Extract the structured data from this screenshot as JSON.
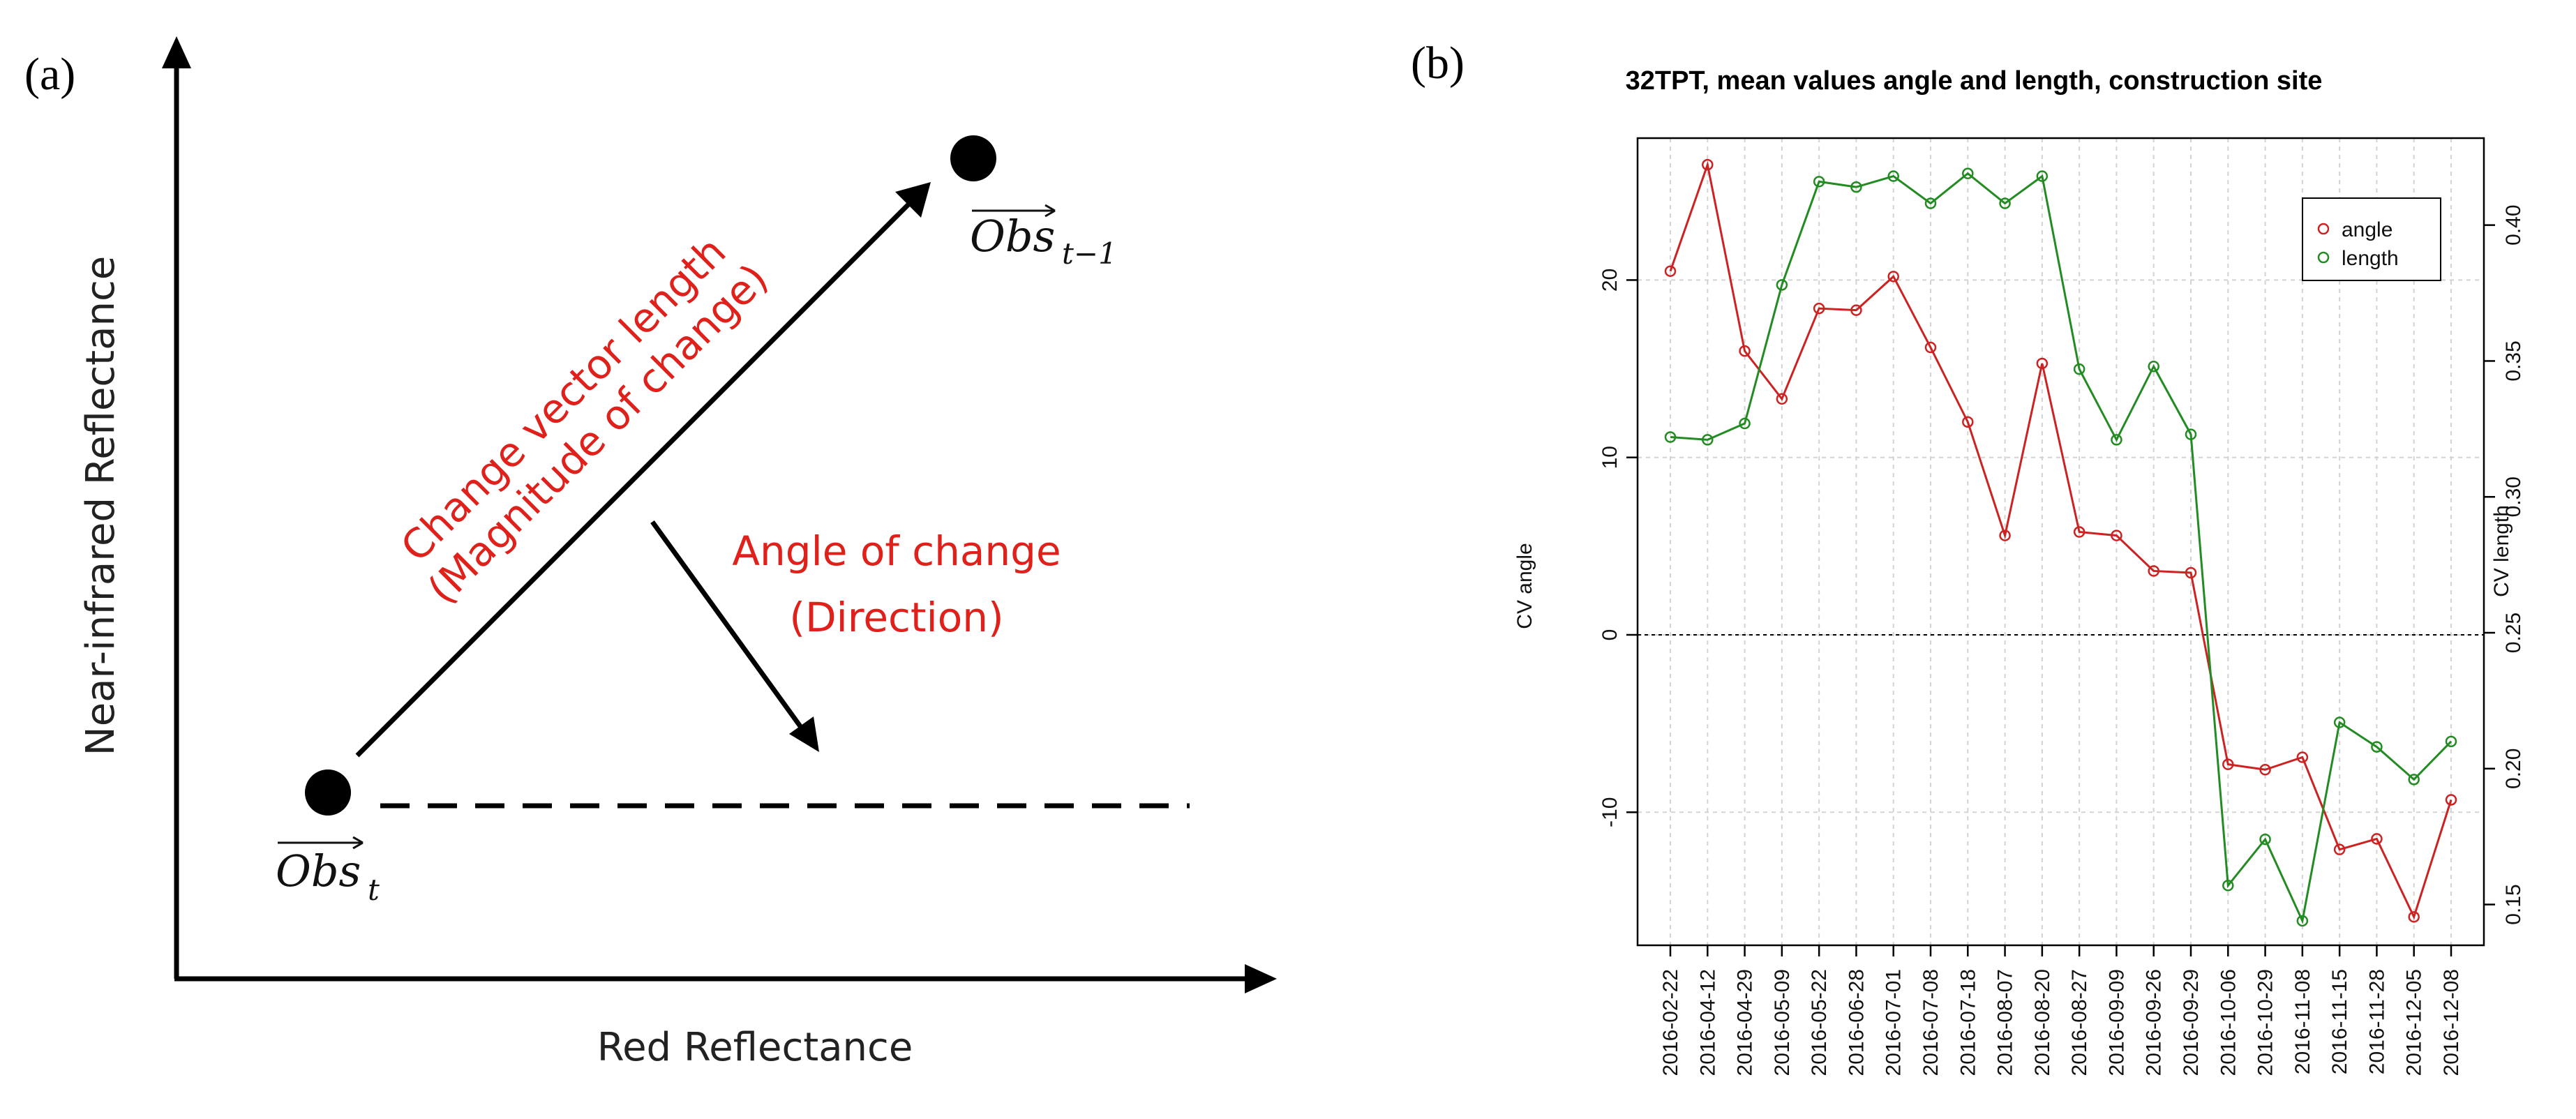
{
  "figure": {
    "label_a": "(a)",
    "label_b": "(b)"
  },
  "diagram": {
    "y_axis_title": "Near-infrared Reflectance",
    "x_axis_title": "Red Reflectance",
    "vector_length_line1": "Change vector length",
    "vector_length_line2": "(Magnitude of change)",
    "angle_line1": "Angle of change",
    "angle_line2": "(Direction)",
    "obs_t_main": "Obs",
    "obs_t_sub": "t",
    "obs_t1_main": "Obs",
    "obs_t1_sub": "t−1",
    "text_color": "#e0201a"
  },
  "chart_data": {
    "type": "line",
    "title": "32TPT, mean values angle and length, construction site",
    "xlabel": "",
    "ylabel": "CV angle",
    "ylabel_right": "CV length",
    "categories": [
      "2016-02-22",
      "2016-04-12",
      "2016-04-29",
      "2016-05-09",
      "2016-05-22",
      "2016-06-28",
      "2016-07-01",
      "2016-07-08",
      "2016-07-18",
      "2016-08-07",
      "2016-08-20",
      "2016-08-27",
      "2016-09-09",
      "2016-09-26",
      "2016-09-29",
      "2016-10-06",
      "2016-10-29",
      "2016-11-08",
      "2016-11-15",
      "2016-11-28",
      "2016-12-05",
      "2016-12-08"
    ],
    "series": [
      {
        "name": "angle",
        "axis": "left",
        "color": "#cc2222",
        "values": [
          20.5,
          26.5,
          16,
          13.3,
          18.4,
          18.3,
          20.2,
          16.2,
          12,
          5.6,
          15.3,
          5.8,
          5.6,
          3.6,
          3.5,
          -7.3,
          -7.6,
          -6.9,
          -12.1,
          -11.5,
          -15.9,
          -9.3
        ]
      },
      {
        "name": "length",
        "axis": "right",
        "color": "#228b22",
        "values": [
          0.322,
          0.321,
          0.327,
          0.378,
          0.416,
          0.414,
          0.418,
          0.408,
          0.419,
          0.408,
          0.418,
          0.347,
          0.321,
          0.348,
          0.323,
          0.157,
          0.174,
          0.144,
          0.217,
          0.208,
          0.196,
          0.21
        ]
      }
    ],
    "left_ticks": [
      -10,
      0,
      10,
      20
    ],
    "left_tick_labels": [
      "-10",
      "0",
      "10",
      "20"
    ],
    "right_ticks": [
      0.15,
      0.2,
      0.25,
      0.3,
      0.35,
      0.4
    ],
    "right_tick_labels": [
      "0.15",
      "0.20",
      "0.25",
      "0.30",
      "0.35",
      "0.40"
    ],
    "ylim": [
      -17.5,
      28
    ],
    "ylim_right": [
      0.135,
      0.432
    ],
    "reference_line": 0,
    "grid": true,
    "legend": {
      "position": "top-right",
      "entries": [
        "angle",
        "length"
      ]
    }
  }
}
